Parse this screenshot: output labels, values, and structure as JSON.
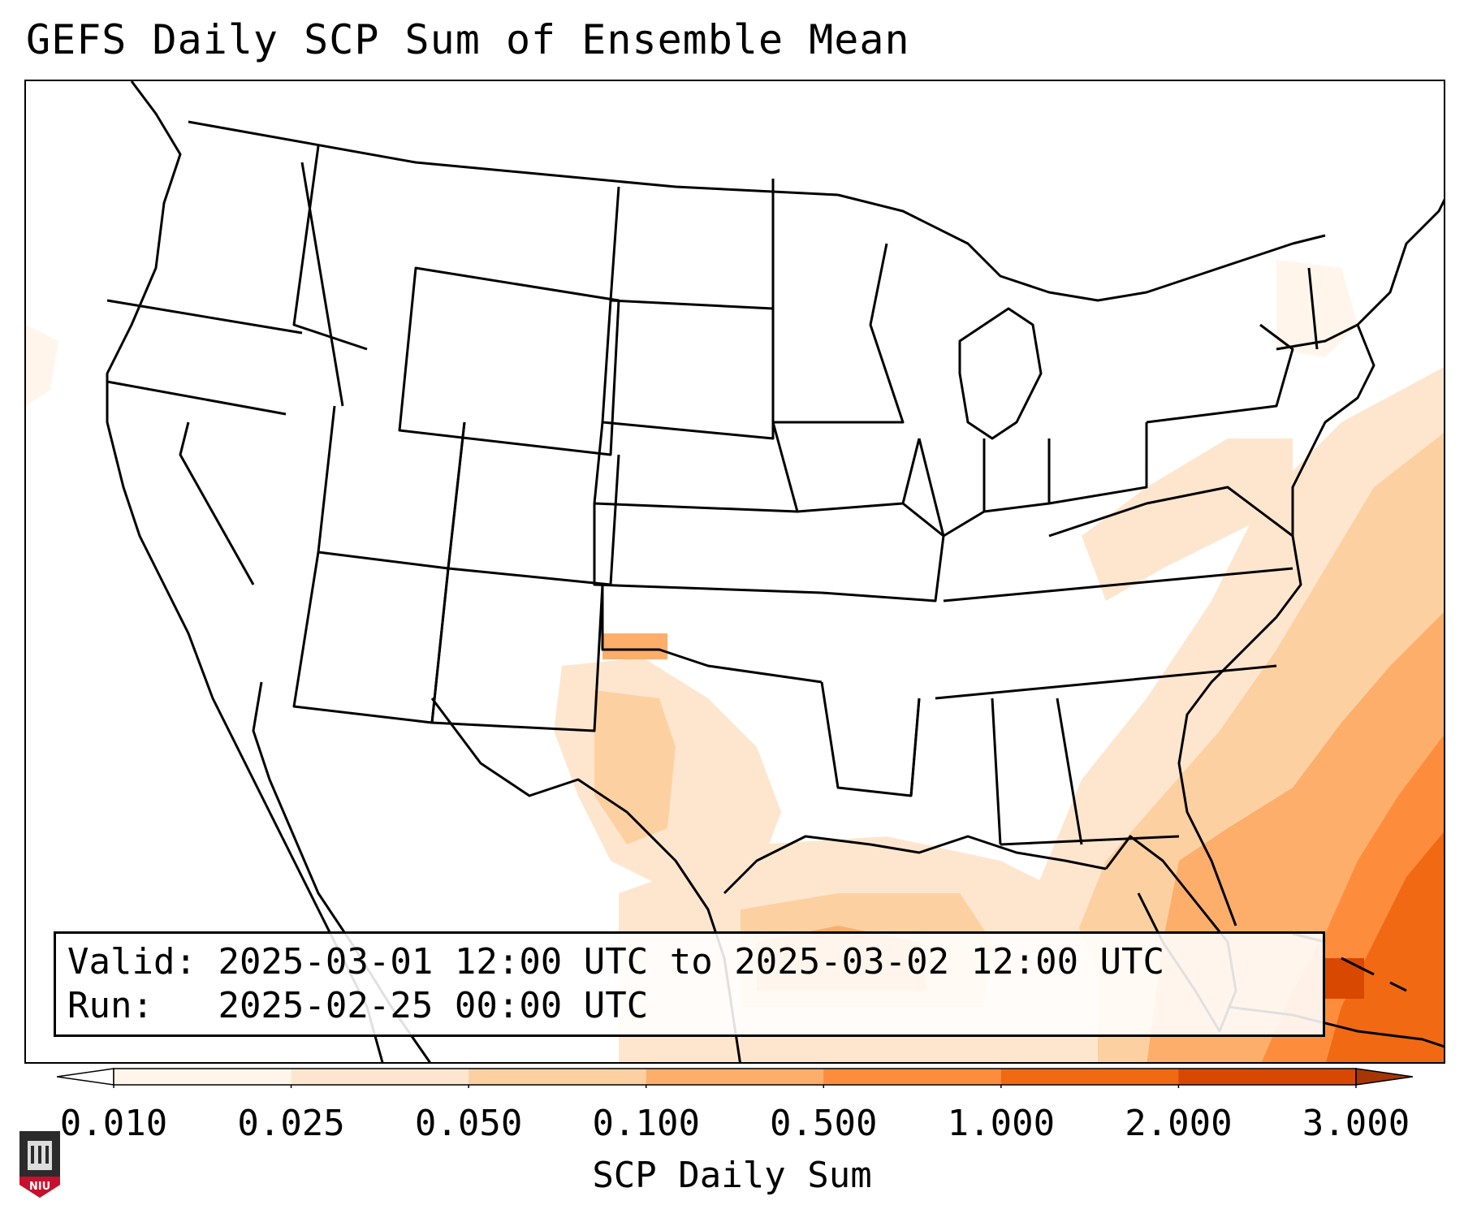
{
  "title": "GEFS Daily SCP Sum of Ensemble Mean",
  "info": {
    "valid_label": "Valid:",
    "valid_value": "2025-03-01 12:00 UTC to 2025-03-02 12:00 UTC",
    "run_label": "Run:",
    "run_value": "2025-02-25 00:00 UTC"
  },
  "colorbar": {
    "label": "SCP Daily Sum",
    "ticks": [
      "0.010",
      "0.025",
      "0.050",
      "0.100",
      "0.500",
      "1.000",
      "2.000",
      "3.000"
    ],
    "colors": [
      "#fff5eb",
      "#fee6ce",
      "#fdd0a2",
      "#fdae6b",
      "#fd8d3c",
      "#f16913",
      "#d94801",
      "#a63603"
    ]
  },
  "logo": {
    "text": "NIU"
  },
  "icons": {
    "logo": "niu-logo-icon"
  }
}
